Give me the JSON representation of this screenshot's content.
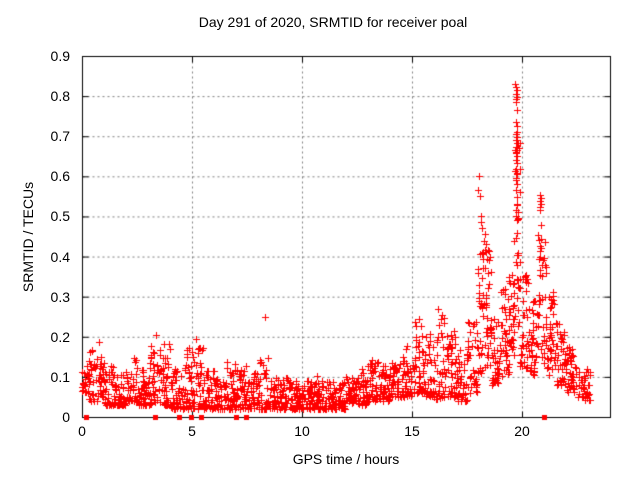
{
  "chart_data": {
    "type": "scatter",
    "title": "Day 291 of 2020, SRMTID for receiver poal",
    "xlabel": "GPS time / hours",
    "ylabel": "SRMTID / TECUs",
    "xlim": [
      0,
      24
    ],
    "ylim": [
      0,
      0.9
    ],
    "xticks": [
      {
        "label": "0",
        "value": 0
      },
      {
        "label": "5",
        "value": 5
      },
      {
        "label": "10",
        "value": 10
      },
      {
        "label": "15",
        "value": 15
      },
      {
        "label": "20",
        "value": 20
      }
    ],
    "yticks": [
      {
        "label": "0",
        "value": 0
      },
      {
        "label": "0.1",
        "value": 0.1
      },
      {
        "label": "0.2",
        "value": 0.2
      },
      {
        "label": "0.3",
        "value": 0.3
      },
      {
        "label": "0.4",
        "value": 0.4
      },
      {
        "label": "0.5",
        "value": 0.5
      },
      {
        "label": "0.6",
        "value": 0.6
      },
      {
        "label": "0.7",
        "value": 0.7
      },
      {
        "label": "0.8",
        "value": 0.8
      },
      {
        "label": "0.9",
        "value": 0.9
      }
    ],
    "grid": true,
    "legend": "none",
    "marker": "plus",
    "marker_size": 7,
    "marker_color": "#ff0000",
    "zero_marker": "filled-square",
    "zero_marker_size": 5,
    "frame_color": "#000000",
    "grid_color": "#7f7f7f",
    "text_color": "#000000",
    "background_color": "#ffffff",
    "bin_format": [
      "hour_start",
      "hour_end",
      "value_min",
      "value_max",
      "point_count",
      "density_exponent"
    ],
    "band_bins": [
      [
        0.0,
        0.3,
        0.06,
        0.13,
        22,
        1.6
      ],
      [
        0.3,
        0.7,
        0.04,
        0.17,
        32,
        1.8
      ],
      [
        0.7,
        1.0,
        0.05,
        0.19,
        28,
        1.6
      ],
      [
        1.0,
        1.5,
        0.03,
        0.13,
        40,
        1.8
      ],
      [
        1.5,
        2.0,
        0.03,
        0.12,
        40,
        1.8
      ],
      [
        2.0,
        2.5,
        0.04,
        0.15,
        40,
        1.8
      ],
      [
        2.5,
        3.0,
        0.03,
        0.12,
        40,
        1.8
      ],
      [
        3.0,
        3.5,
        0.03,
        0.18,
        40,
        1.9
      ],
      [
        3.5,
        4.0,
        0.03,
        0.19,
        40,
        2.0
      ],
      [
        4.0,
        4.5,
        0.02,
        0.12,
        38,
        1.8
      ],
      [
        4.5,
        5.0,
        0.02,
        0.18,
        40,
        1.9
      ],
      [
        5.0,
        5.5,
        0.02,
        0.19,
        40,
        1.9
      ],
      [
        5.5,
        6.0,
        0.02,
        0.12,
        40,
        1.8
      ],
      [
        6.0,
        6.5,
        0.02,
        0.1,
        38,
        1.7
      ],
      [
        6.5,
        7.0,
        0.02,
        0.14,
        40,
        1.8
      ],
      [
        7.0,
        7.5,
        0.02,
        0.13,
        40,
        1.8
      ],
      [
        7.5,
        8.0,
        0.02,
        0.11,
        38,
        1.7
      ],
      [
        8.0,
        8.5,
        0.02,
        0.15,
        40,
        1.9
      ],
      [
        8.5,
        9.0,
        0.02,
        0.1,
        40,
        1.7
      ],
      [
        9.0,
        9.5,
        0.02,
        0.1,
        40,
        1.7
      ],
      [
        9.5,
        10.0,
        0.02,
        0.09,
        40,
        1.7
      ],
      [
        10.0,
        10.5,
        0.02,
        0.09,
        40,
        1.7
      ],
      [
        10.5,
        11.0,
        0.02,
        0.11,
        40,
        1.8
      ],
      [
        11.0,
        11.5,
        0.02,
        0.09,
        40,
        1.7
      ],
      [
        11.5,
        12.0,
        0.02,
        0.09,
        40,
        1.7
      ],
      [
        12.0,
        12.5,
        0.03,
        0.1,
        40,
        1.7
      ],
      [
        12.5,
        13.0,
        0.03,
        0.12,
        40,
        1.7
      ],
      [
        13.0,
        13.5,
        0.04,
        0.15,
        40,
        1.7
      ],
      [
        13.5,
        14.0,
        0.04,
        0.13,
        40,
        1.7
      ],
      [
        14.0,
        14.5,
        0.05,
        0.14,
        40,
        1.7
      ],
      [
        14.5,
        15.0,
        0.05,
        0.18,
        40,
        1.6
      ],
      [
        15.0,
        15.5,
        0.06,
        0.24,
        40,
        1.6
      ],
      [
        15.5,
        16.0,
        0.05,
        0.21,
        40,
        1.6
      ],
      [
        16.0,
        16.5,
        0.045,
        0.25,
        40,
        1.6
      ],
      [
        16.5,
        17.0,
        0.05,
        0.22,
        40,
        1.6
      ],
      [
        17.0,
        17.5,
        0.04,
        0.17,
        40,
        1.6
      ],
      [
        17.5,
        18.0,
        0.06,
        0.25,
        40,
        1.5
      ],
      [
        18.0,
        18.3,
        0.1,
        0.42,
        34,
        1.2
      ],
      [
        18.3,
        18.6,
        0.12,
        0.43,
        34,
        1.1
      ],
      [
        18.6,
        19.0,
        0.08,
        0.26,
        36,
        1.4
      ],
      [
        19.0,
        19.4,
        0.1,
        0.32,
        36,
        1.3
      ],
      [
        19.4,
        19.65,
        0.15,
        0.4,
        28,
        1.2
      ],
      [
        19.65,
        19.9,
        0.22,
        0.72,
        34,
        1.0
      ],
      [
        19.9,
        20.3,
        0.12,
        0.36,
        36,
        1.3
      ],
      [
        20.3,
        20.7,
        0.1,
        0.3,
        36,
        1.4
      ],
      [
        20.7,
        21.1,
        0.13,
        0.46,
        34,
        1.2
      ],
      [
        21.1,
        21.5,
        0.1,
        0.33,
        36,
        1.4
      ],
      [
        21.5,
        22.0,
        0.08,
        0.25,
        40,
        1.5
      ],
      [
        22.0,
        22.5,
        0.06,
        0.18,
        40,
        1.6
      ],
      [
        22.5,
        23.1,
        0.04,
        0.12,
        36,
        1.6
      ]
    ],
    "peak_points": [
      [
        3.35,
        0.205
      ],
      [
        5.2,
        0.195
      ],
      [
        8.3,
        0.25
      ],
      [
        15.3,
        0.245
      ],
      [
        16.2,
        0.27
      ],
      [
        16.35,
        0.255
      ],
      [
        18.05,
        0.6
      ],
      [
        18.02,
        0.565
      ],
      [
        18.08,
        0.552
      ],
      [
        18.15,
        0.5
      ],
      [
        18.12,
        0.487
      ],
      [
        18.2,
        0.472
      ],
      [
        18.3,
        0.455
      ],
      [
        18.25,
        0.44
      ],
      [
        18.35,
        0.432
      ],
      [
        19.62,
        0.44
      ],
      [
        19.7,
        0.83
      ],
      [
        19.73,
        0.822
      ],
      [
        19.75,
        0.815
      ],
      [
        19.72,
        0.806
      ],
      [
        19.76,
        0.798
      ],
      [
        19.74,
        0.792
      ],
      [
        19.71,
        0.786
      ],
      [
        19.77,
        0.765
      ],
      [
        19.73,
        0.735
      ],
      [
        19.75,
        0.726
      ],
      [
        19.74,
        0.705
      ],
      [
        19.76,
        0.697
      ],
      [
        19.72,
        0.69
      ],
      [
        19.75,
        0.682
      ],
      [
        19.73,
        0.674
      ],
      [
        19.77,
        0.666
      ],
      [
        19.74,
        0.658
      ],
      [
        19.78,
        0.65
      ],
      [
        19.72,
        0.641
      ],
      [
        19.75,
        0.632
      ],
      [
        19.73,
        0.618
      ],
      [
        19.76,
        0.606
      ],
      [
        19.74,
        0.596
      ],
      [
        19.77,
        0.582
      ],
      [
        19.73,
        0.565
      ],
      [
        19.75,
        0.548
      ],
      [
        19.76,
        0.532
      ],
      [
        19.72,
        0.516
      ],
      [
        19.74,
        0.502
      ],
      [
        19.78,
        0.49
      ],
      [
        20.82,
        0.553
      ],
      [
        20.85,
        0.546
      ],
      [
        20.83,
        0.539
      ],
      [
        20.86,
        0.531
      ],
      [
        20.84,
        0.523
      ],
      [
        20.82,
        0.516
      ],
      [
        20.85,
        0.479
      ],
      [
        20.88,
        0.443
      ],
      [
        20.83,
        0.427
      ],
      [
        21.05,
        0.38
      ],
      [
        21.1,
        0.36
      ]
    ],
    "zero_marker_hours": [
      0.2,
      3.3,
      4.4,
      4.95,
      5.4,
      7.0,
      7.45,
      21.0
    ]
  }
}
